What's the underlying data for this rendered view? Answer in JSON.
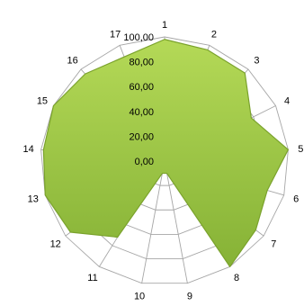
{
  "chart_data": {
    "type": "radar",
    "categories": [
      "1",
      "2",
      "3",
      "4",
      "5",
      "6",
      "7",
      "8",
      "9",
      "10",
      "11",
      "12",
      "13",
      "14",
      "15",
      "16",
      "17"
    ],
    "series": [
      {
        "values": [
          98,
          96,
          96,
          78,
          100,
          86,
          92,
          100,
          10,
          10,
          72,
          95,
          100,
          98,
          100,
          95,
          90
        ]
      }
    ],
    "rlim": [
      0,
      100
    ],
    "rticks": [
      "0,00",
      "20,00",
      "40,00",
      "60,00",
      "80,00",
      "100,00"
    ],
    "grid": true,
    "legend": "none",
    "colors": {
      "fill_top": "#b4d957",
      "fill_bottom": "#86b236",
      "stroke": "#7aa22c",
      "grid": "#a6a6a6",
      "text": "#000000"
    }
  }
}
